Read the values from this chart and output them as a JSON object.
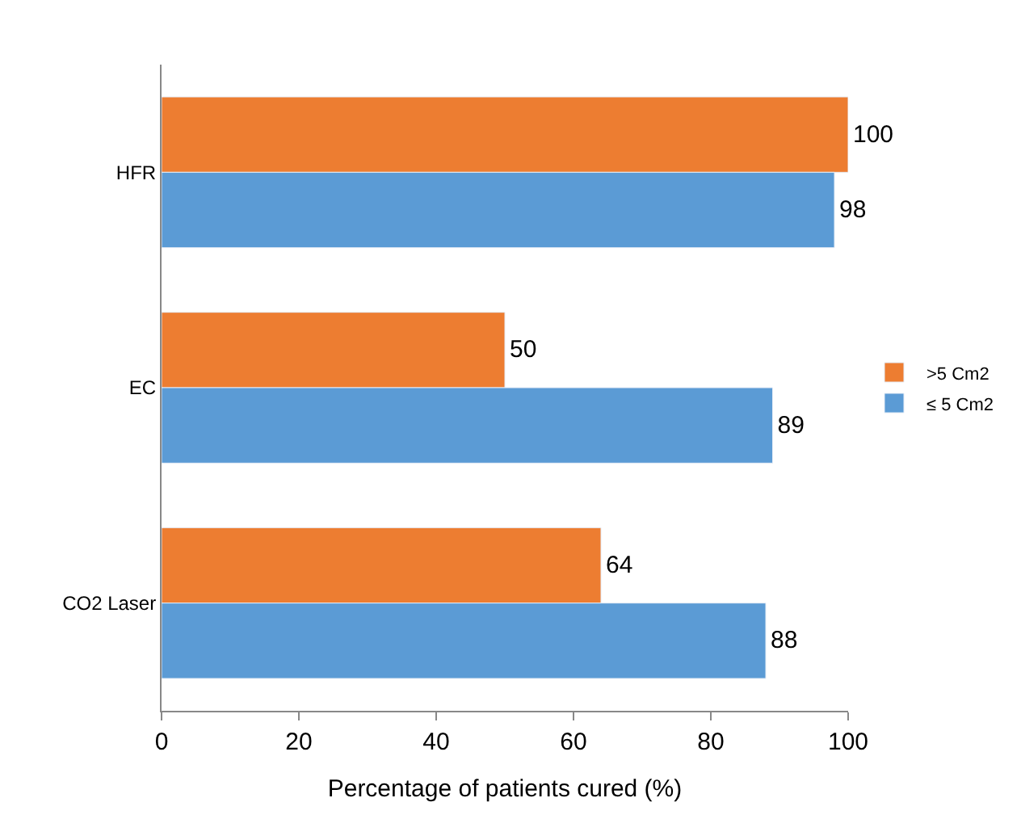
{
  "chart_data": {
    "type": "bar",
    "orientation": "horizontal",
    "xlabel": "Percentage of patients cured (%)",
    "categories": [
      "HFR",
      "EC",
      "CO2 Laser"
    ],
    "series": [
      {
        "name": ">5 Cm2",
        "color": "#ed7d31",
        "values": [
          100,
          50,
          64
        ]
      },
      {
        "name": "≤ 5 Cm2",
        "color": "#5b9bd5",
        "values": [
          98,
          89,
          88
        ]
      }
    ],
    "xlim": [
      0,
      100
    ],
    "xticks": [
      0,
      20,
      40,
      60,
      80,
      100
    ],
    "data_labels": true,
    "legend": "right"
  }
}
